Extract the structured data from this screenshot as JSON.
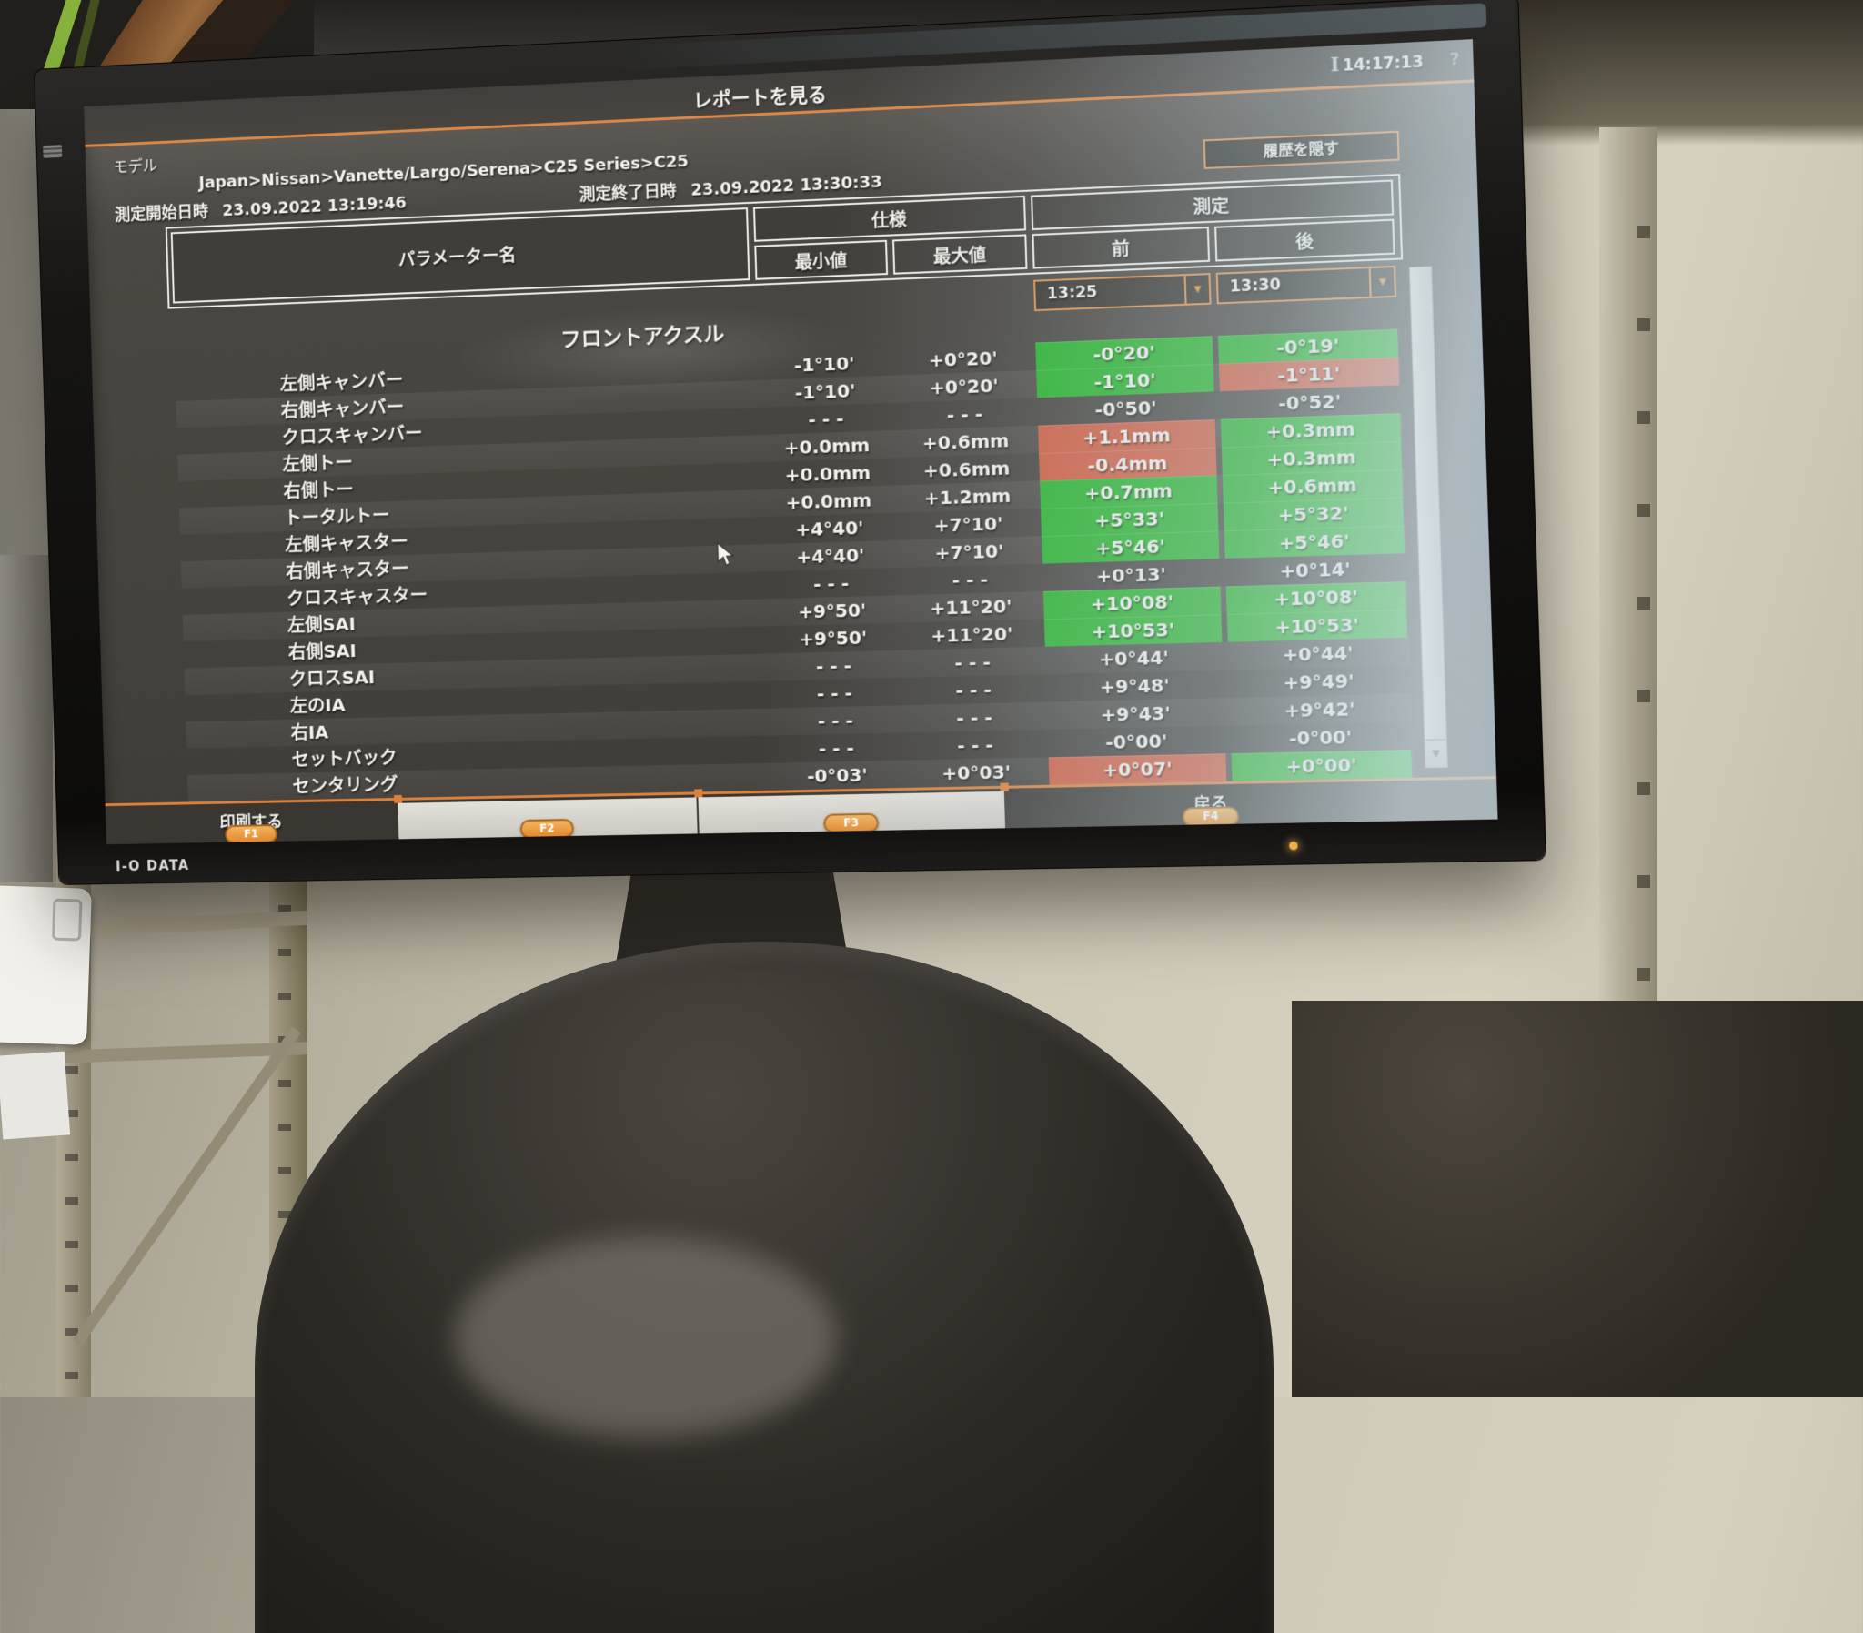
{
  "monitor": {
    "brand": "I-O DATA"
  },
  "screen": {
    "titlebar": {
      "title": "レポートを見る",
      "clock": "14:17:13",
      "help": "?"
    },
    "model": {
      "label": "モデル",
      "breadcrumb": "Japan>Nissan>Vanette/Largo/Serena>C25 Series>C25"
    },
    "measurement": {
      "start_label": "測定開始日時",
      "start_value": "23.09.2022 13:19:46",
      "end_label": "測定終了日時",
      "end_value": "23.09.2022 13:30:33"
    },
    "hide_history_button": "履歴を隠す",
    "table": {
      "headers": {
        "param": "パラメーター名",
        "spec": "仕様",
        "meas": "測定",
        "min": "最小値",
        "max": "最大値",
        "before": "前",
        "after": "後"
      },
      "time_selectors": {
        "before": "13:25",
        "after": "13:30"
      },
      "section_title": "フロントアクスル",
      "rows": [
        {
          "name": "左側キャンバー",
          "min": "-1°10'",
          "max": "+0°20'",
          "before": "-0°20'",
          "after": "-0°19'",
          "before_state": "ok",
          "after_state": "ok"
        },
        {
          "name": "右側キャンバー",
          "min": "-1°10'",
          "max": "+0°20'",
          "before": "-1°10'",
          "after": "-1°11'",
          "before_state": "ok",
          "after_state": "bad"
        },
        {
          "name": "クロスキャンバー",
          "min": "- - -",
          "max": "- - -",
          "before": "-0°50'",
          "after": "-0°52'",
          "before_state": "none",
          "after_state": "none"
        },
        {
          "name": "左側トー",
          "min": "+0.0mm",
          "max": "+0.6mm",
          "before": "+1.1mm",
          "after": "+0.3mm",
          "before_state": "bad",
          "after_state": "ok"
        },
        {
          "name": "右側トー",
          "min": "+0.0mm",
          "max": "+0.6mm",
          "before": "-0.4mm",
          "after": "+0.3mm",
          "before_state": "bad",
          "after_state": "ok"
        },
        {
          "name": "トータルトー",
          "min": "+0.0mm",
          "max": "+1.2mm",
          "before": "+0.7mm",
          "after": "+0.6mm",
          "before_state": "ok",
          "after_state": "ok"
        },
        {
          "name": "左側キャスター",
          "min": "+4°40'",
          "max": "+7°10'",
          "before": "+5°33'",
          "after": "+5°32'",
          "before_state": "ok",
          "after_state": "ok"
        },
        {
          "name": "右側キャスター",
          "min": "+4°40'",
          "max": "+7°10'",
          "before": "+5°46'",
          "after": "+5°46'",
          "before_state": "ok",
          "after_state": "ok"
        },
        {
          "name": "クロスキャスター",
          "min": "- - -",
          "max": "- - -",
          "before": "+0°13'",
          "after": "+0°14'",
          "before_state": "none",
          "after_state": "none"
        },
        {
          "name": "左側SAI",
          "min": "+9°50'",
          "max": "+11°20'",
          "before": "+10°08'",
          "after": "+10°08'",
          "before_state": "ok",
          "after_state": "ok"
        },
        {
          "name": "右側SAI",
          "min": "+9°50'",
          "max": "+11°20'",
          "before": "+10°53'",
          "after": "+10°53'",
          "before_state": "ok",
          "after_state": "ok"
        },
        {
          "name": "クロスSAI",
          "min": "- - -",
          "max": "- - -",
          "before": "+0°44'",
          "after": "+0°44'",
          "before_state": "none",
          "after_state": "none"
        },
        {
          "name": "左のIA",
          "min": "- - -",
          "max": "- - -",
          "before": "+9°48'",
          "after": "+9°49'",
          "before_state": "none",
          "after_state": "none"
        },
        {
          "name": "右IA",
          "min": "- - -",
          "max": "- - -",
          "before": "+9°43'",
          "after": "+9°42'",
          "before_state": "none",
          "after_state": "none"
        },
        {
          "name": "セットバック",
          "min": "- - -",
          "max": "- - -",
          "before": "-0°00'",
          "after": "-0°00'",
          "before_state": "none",
          "after_state": "none"
        },
        {
          "name": "センタリング",
          "min": "-0°03'",
          "max": "+0°03'",
          "before": "+0°07'",
          "after": "+0°00'",
          "before_state": "bad",
          "after_state": "ok"
        }
      ]
    },
    "footer": {
      "print_label": "印刷する",
      "back_label": "戻る",
      "fkeys": [
        "F1",
        "F2",
        "F3",
        "F4"
      ]
    }
  },
  "colors": {
    "accent_orange": "#da813c",
    "pass_green": "#27b22a",
    "fail_red": "#cf5b3f"
  }
}
